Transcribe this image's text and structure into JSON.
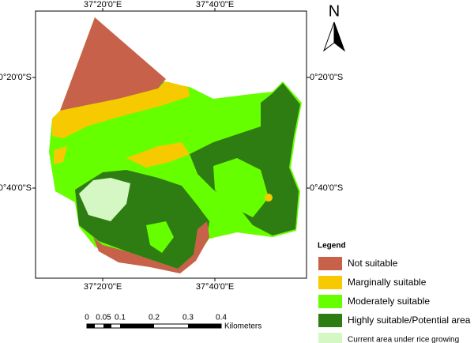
{
  "north": "N",
  "coordinates": {
    "top": [
      "37°20'0\"E",
      "37°40'0\"E"
    ],
    "bottom": [
      "37°20'0\"E",
      "37°40'0\"E"
    ],
    "left": [
      "0°20'0\"S",
      "0°40'0\"S"
    ],
    "right": [
      "0°20'0\"S",
      "0°40'0\"S"
    ]
  },
  "legend": {
    "title": "Legend",
    "items": [
      {
        "label": "Not suitable",
        "color": "#c8614a"
      },
      {
        "label": "Marginally suitable",
        "color": "#f7c900"
      },
      {
        "label": "Moderately suitable",
        "color": "#66ff00"
      },
      {
        "label": "Highly suitable/Potential area",
        "color": "#2e7d12"
      },
      {
        "label": "Current area under rice growing",
        "color": "#d4f7c4"
      }
    ]
  },
  "scale_bar": {
    "labels": [
      "0",
      "0.05",
      "0.1",
      "0.2",
      "0.3",
      "0.4"
    ],
    "unit": "Kilometers"
  }
}
